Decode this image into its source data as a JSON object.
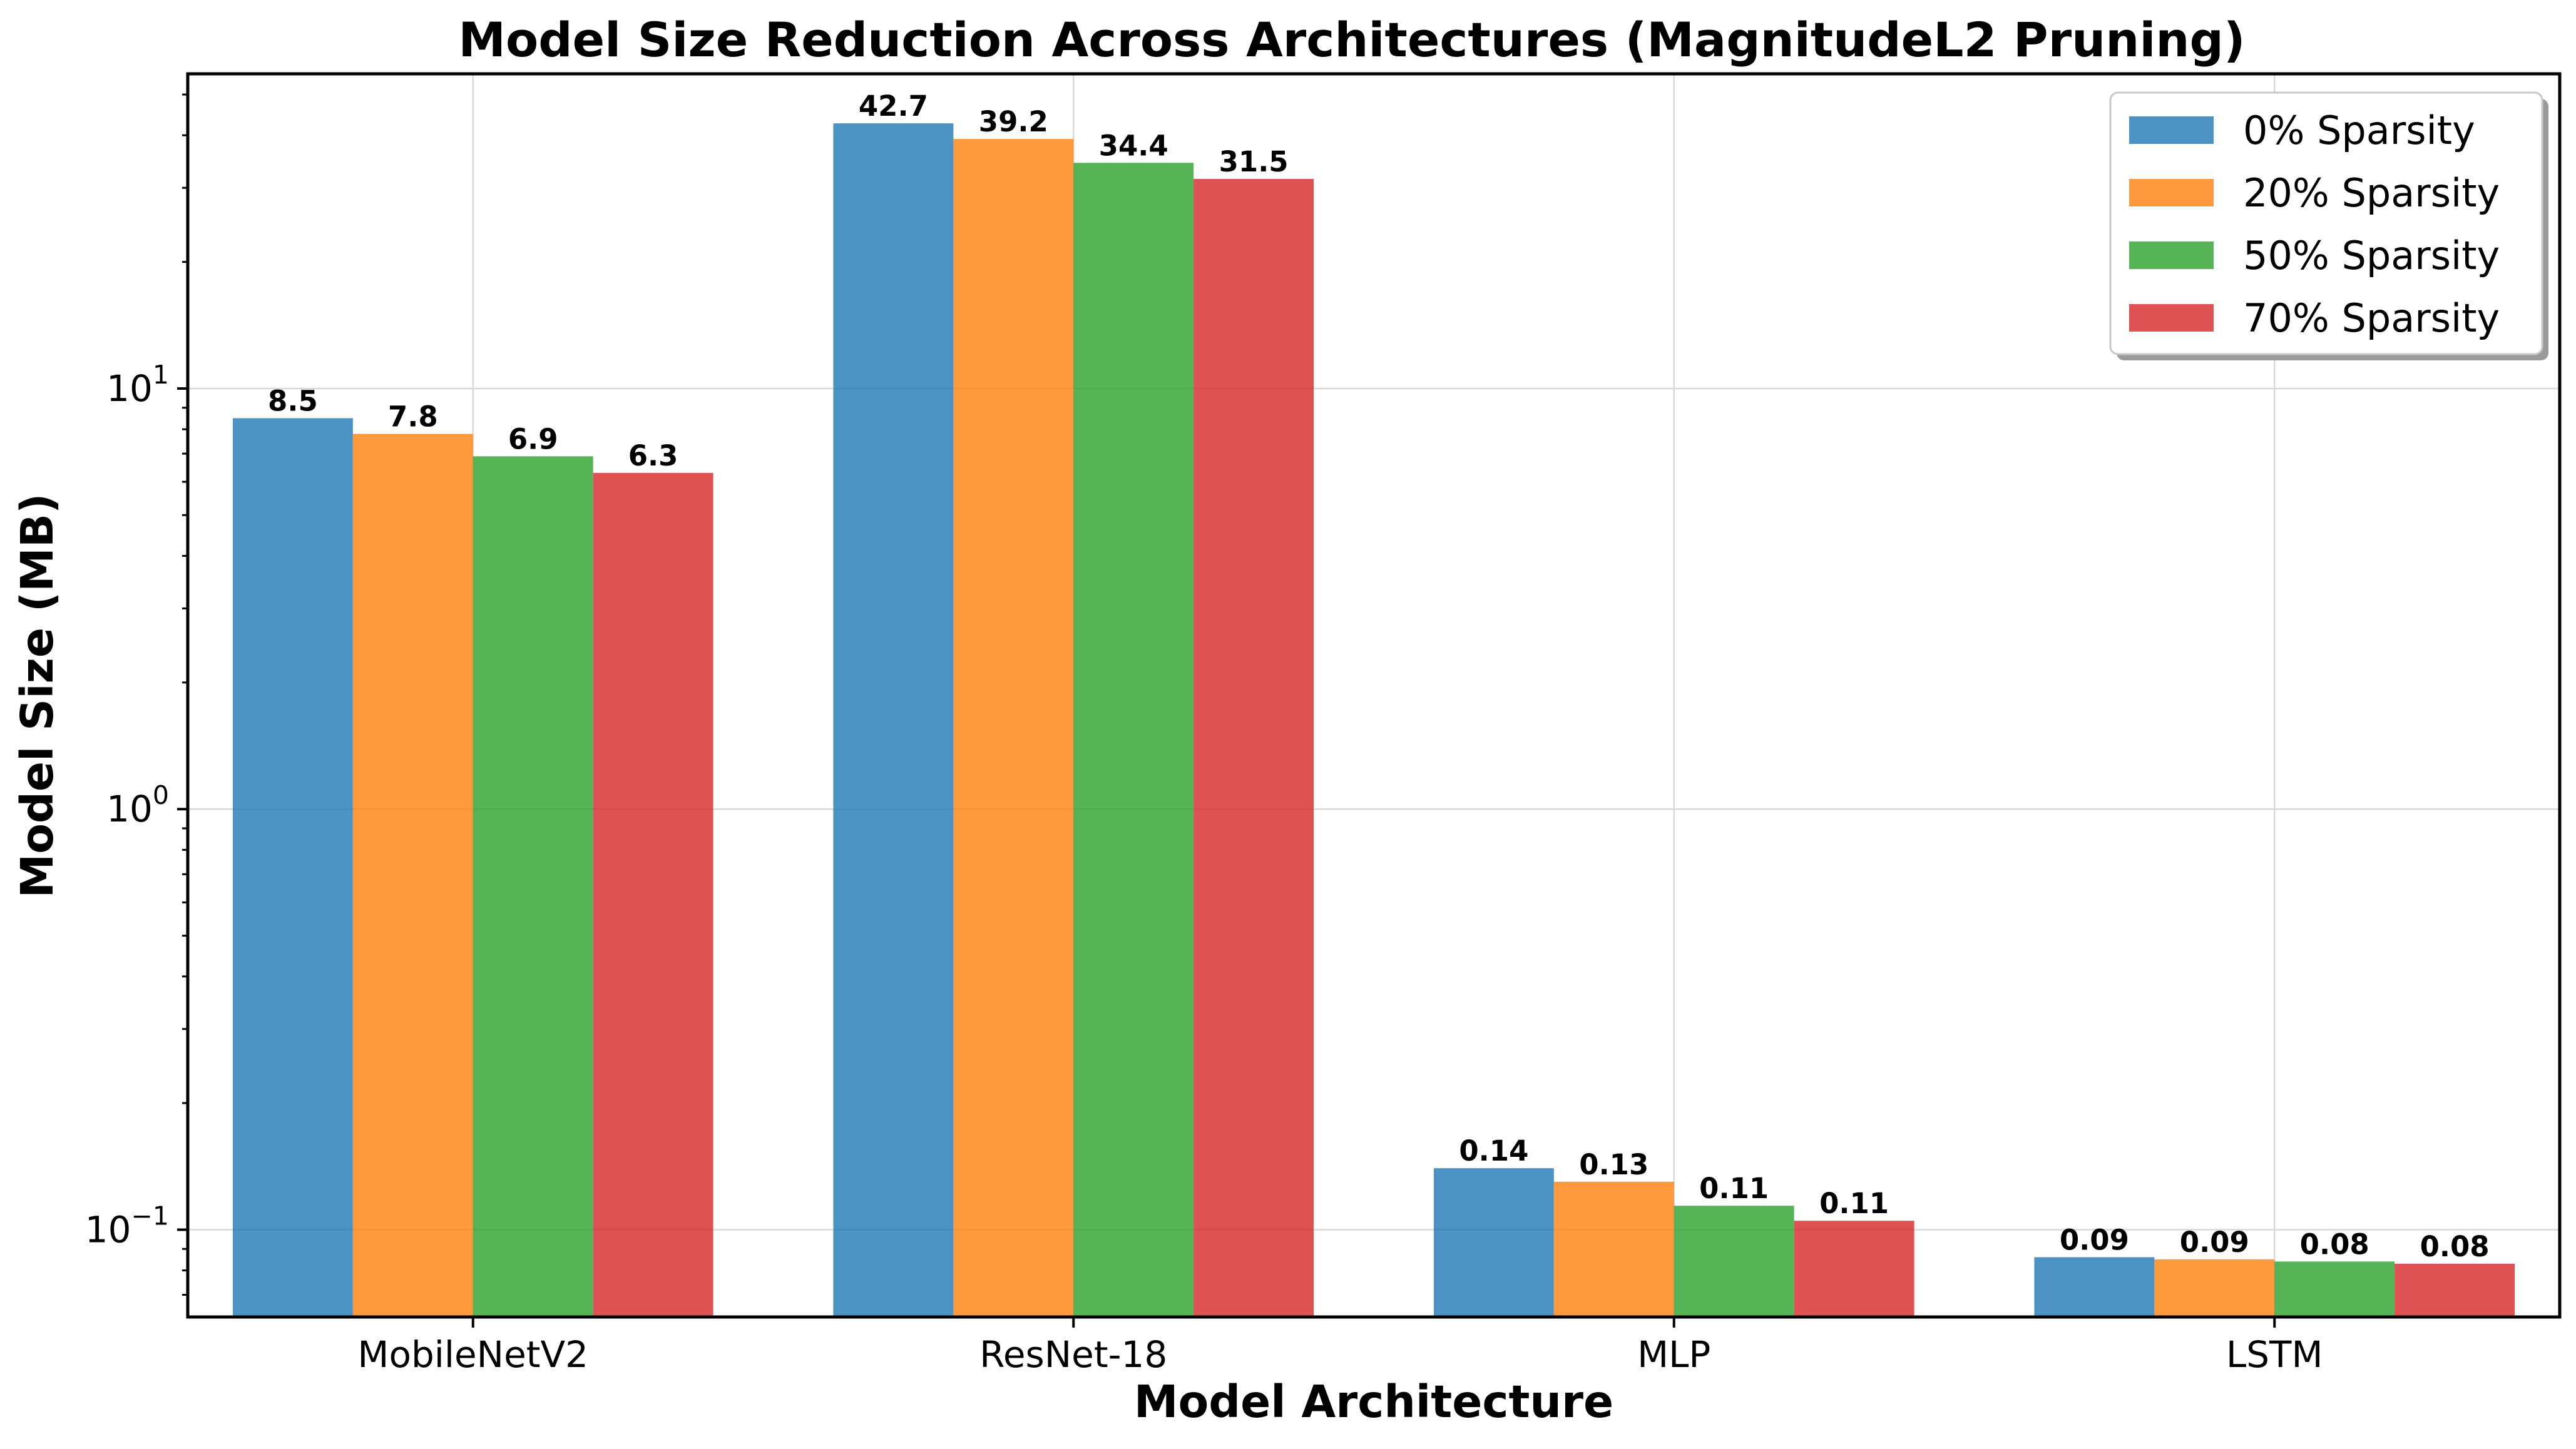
{
  "chart_data": {
    "type": "bar",
    "title": "Model Size Reduction Across Architectures (MagnitudeL2 Pruning)",
    "xlabel": "Model Architecture",
    "ylabel": "Model Size (MB)",
    "yscale": "log",
    "ylim": [
      0.062,
      56
    ],
    "yticks": [
      {
        "value": 0.1,
        "base": "10",
        "exp": "−1"
      },
      {
        "value": 1,
        "base": "10",
        "exp": "0"
      },
      {
        "value": 10,
        "base": "10",
        "exp": "1"
      }
    ],
    "grid": true,
    "legend_position": "top-right",
    "categories": [
      "MobileNetV2",
      "ResNet-18",
      "MLP",
      "LSTM"
    ],
    "series": [
      {
        "name": "0% Sparsity",
        "color": "#1f77b4",
        "values": [
          8.5,
          42.7,
          0.14,
          0.086
        ],
        "labels": [
          "8.5",
          "42.7",
          "0.14",
          "0.09"
        ]
      },
      {
        "name": "20% Sparsity",
        "color": "#ff7f0e",
        "values": [
          7.8,
          39.2,
          0.13,
          0.085
        ],
        "labels": [
          "7.8",
          "39.2",
          "0.13",
          "0.09"
        ]
      },
      {
        "name": "50% Sparsity",
        "color": "#2ca02c",
        "values": [
          6.9,
          34.4,
          0.114,
          0.084
        ],
        "labels": [
          "6.9",
          "34.4",
          "0.11",
          "0.08"
        ]
      },
      {
        "name": "70% Sparsity",
        "color": "#d62728",
        "values": [
          6.3,
          31.5,
          0.105,
          0.083
        ],
        "labels": [
          "6.3",
          "31.5",
          "0.11",
          "0.08"
        ]
      }
    ]
  }
}
